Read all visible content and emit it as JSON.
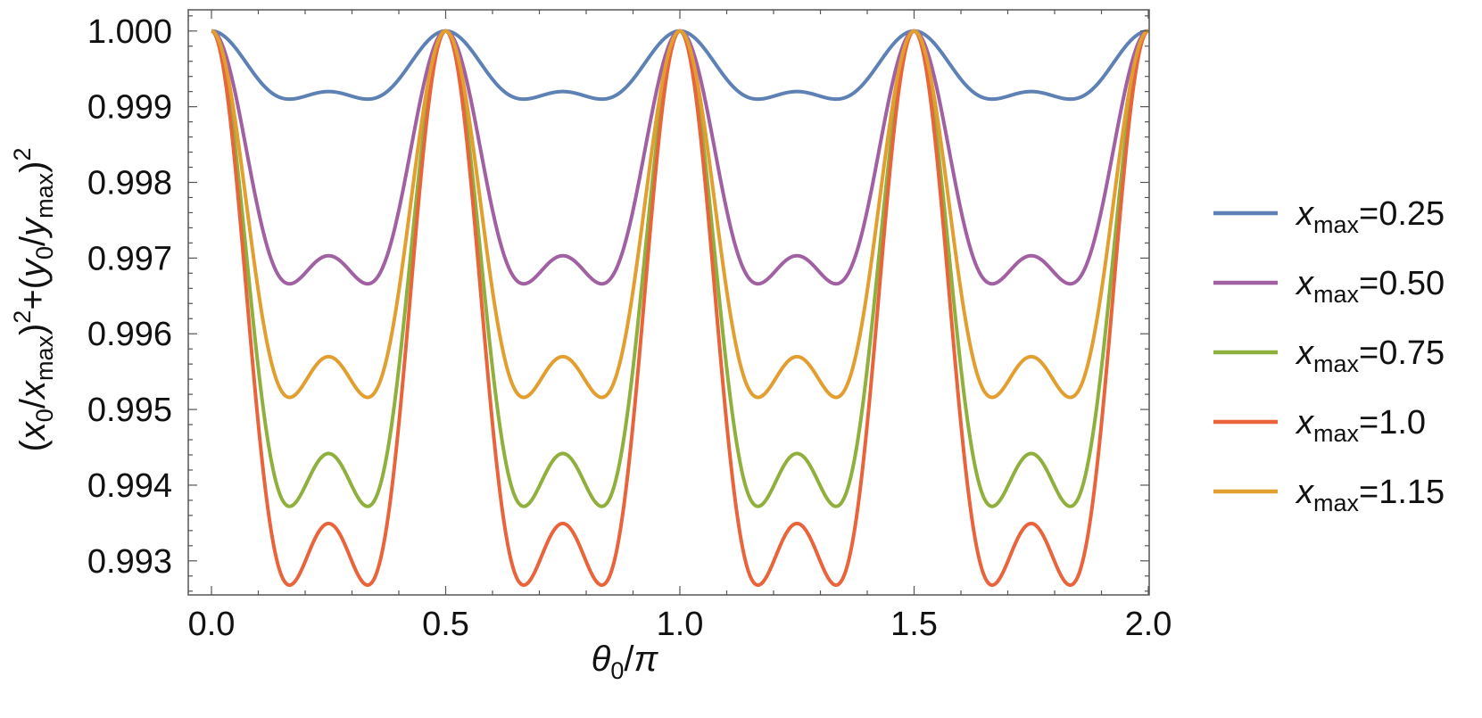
{
  "chart_data": {
    "type": "line",
    "xlabel_parts": {
      "theta": "θ",
      "sub0": "0",
      "slash": "/",
      "pi": "π"
    },
    "ylabel_parts": [
      "(",
      "x",
      "0",
      "/",
      "x",
      "max",
      ")",
      "2",
      "+(",
      "y",
      "0",
      "/",
      "y",
      "max",
      ")",
      "2"
    ],
    "xlim": [
      0.0,
      2.0
    ],
    "ylim": [
      0.99255,
      1.00028
    ],
    "x_ticks": [
      "0.0",
      "0.5",
      "1.0",
      "1.5",
      "2.0"
    ],
    "x_tick_values": [
      0.0,
      0.5,
      1.0,
      1.5,
      2.0
    ],
    "y_ticks": [
      "0.993",
      "0.994",
      "0.995",
      "0.996",
      "0.997",
      "0.998",
      "0.999",
      "1.000"
    ],
    "y_tick_values": [
      0.993,
      0.994,
      0.995,
      0.996,
      0.997,
      0.998,
      0.999,
      1.0
    ],
    "grid": false,
    "legend_position": "right",
    "legend_prefix": "x",
    "legend_sub": "max",
    "series": [
      {
        "name": "=0.25",
        "color": "#5E81B5",
        "min_value": 0.9991,
        "min_x": 0.15
      },
      {
        "name": "=0.50",
        "color": "#A160A2",
        "min_value": 0.99666,
        "min_x": 0.15
      },
      {
        "name": "=0.75",
        "color": "#8FB03C",
        "min_value": 0.99372,
        "min_x": 0.15
      },
      {
        "name": "=1.0",
        "color": "#E9633B",
        "min_value": 0.99268,
        "min_x": 0.15
      },
      {
        "name": "=1.15",
        "color": "#E29E2F",
        "min_value": 0.99516,
        "min_x": 0.15
      }
    ]
  }
}
